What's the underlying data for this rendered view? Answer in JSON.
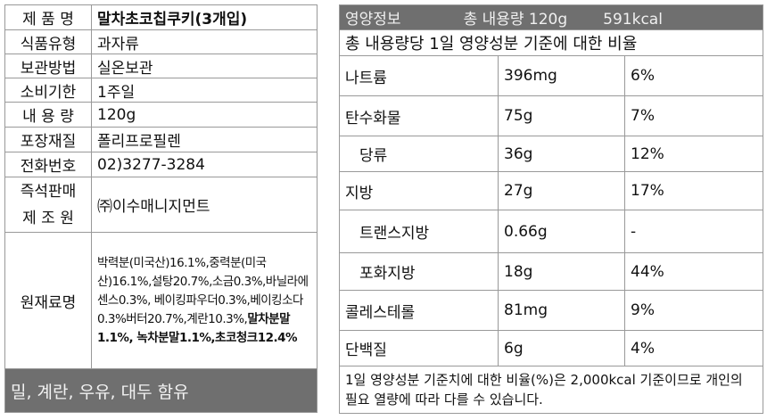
{
  "product": {
    "rows": [
      {
        "label": "제 품 명",
        "value": "말차초코칩쿠키(3개입)"
      },
      {
        "label": "식품유형",
        "value": "과자류"
      },
      {
        "label": "보관방법",
        "value": "실온보관"
      },
      {
        "label": "소비기한",
        "value": "1주일"
      },
      {
        "label": "내 용 량",
        "value": "120g"
      },
      {
        "label": "포장재질",
        "value": "폴리프로필렌"
      },
      {
        "label": "전화번호",
        "value": "02)3277-3284"
      }
    ],
    "maker_label_1": "즉석판매",
    "maker_label_2": "제 조 원",
    "maker_value": "㈜이수매니지먼트",
    "ingredients_label": "원재료명",
    "ingredients_plain": "박력분(미국산)16.1%,중력분(미국산)16.1%,설탕20.7%,소금0.3%,바닐라에센스0.3%, 베이킹파우더0.3%,베이킹소다0.3%버터20.7%,계란10.3%,",
    "ingredients_bold": "말차분말1.1%, 녹차분말1.1%,초코청크12.4%",
    "allergy": "밀, 계란, 우유, 대두 함유"
  },
  "nutrition": {
    "title": "영양정보",
    "total": "총 내용량 120g",
    "kcal": "591kcal",
    "subtitle": "총 내용량당 1일 영양성분 기준에 대한 비율",
    "rows": [
      {
        "name": "나트륨",
        "amount": "396mg",
        "pct": "6%"
      },
      {
        "name": "탄수화물",
        "amount": "75g",
        "pct": "7%"
      },
      {
        "name": "당류",
        "amount": "36g",
        "pct": "12%"
      },
      {
        "name": "지방",
        "amount": "27g",
        "pct": "17%"
      },
      {
        "name": "트랜스지방",
        "amount": "0.66g",
        "pct": "-"
      },
      {
        "name": "포화지방",
        "amount": "18g",
        "pct": "44%"
      },
      {
        "name": "콜레스테롤",
        "amount": "81mg",
        "pct": "9%"
      },
      {
        "name": "단백질",
        "amount": "6g",
        "pct": "4%"
      }
    ],
    "footnote": "1일 영양성분 기준치에 대한 비율(%)은 2,000kcal 기준이므로 개인의 필요 열량에 따라 다를 수 있습니다."
  }
}
